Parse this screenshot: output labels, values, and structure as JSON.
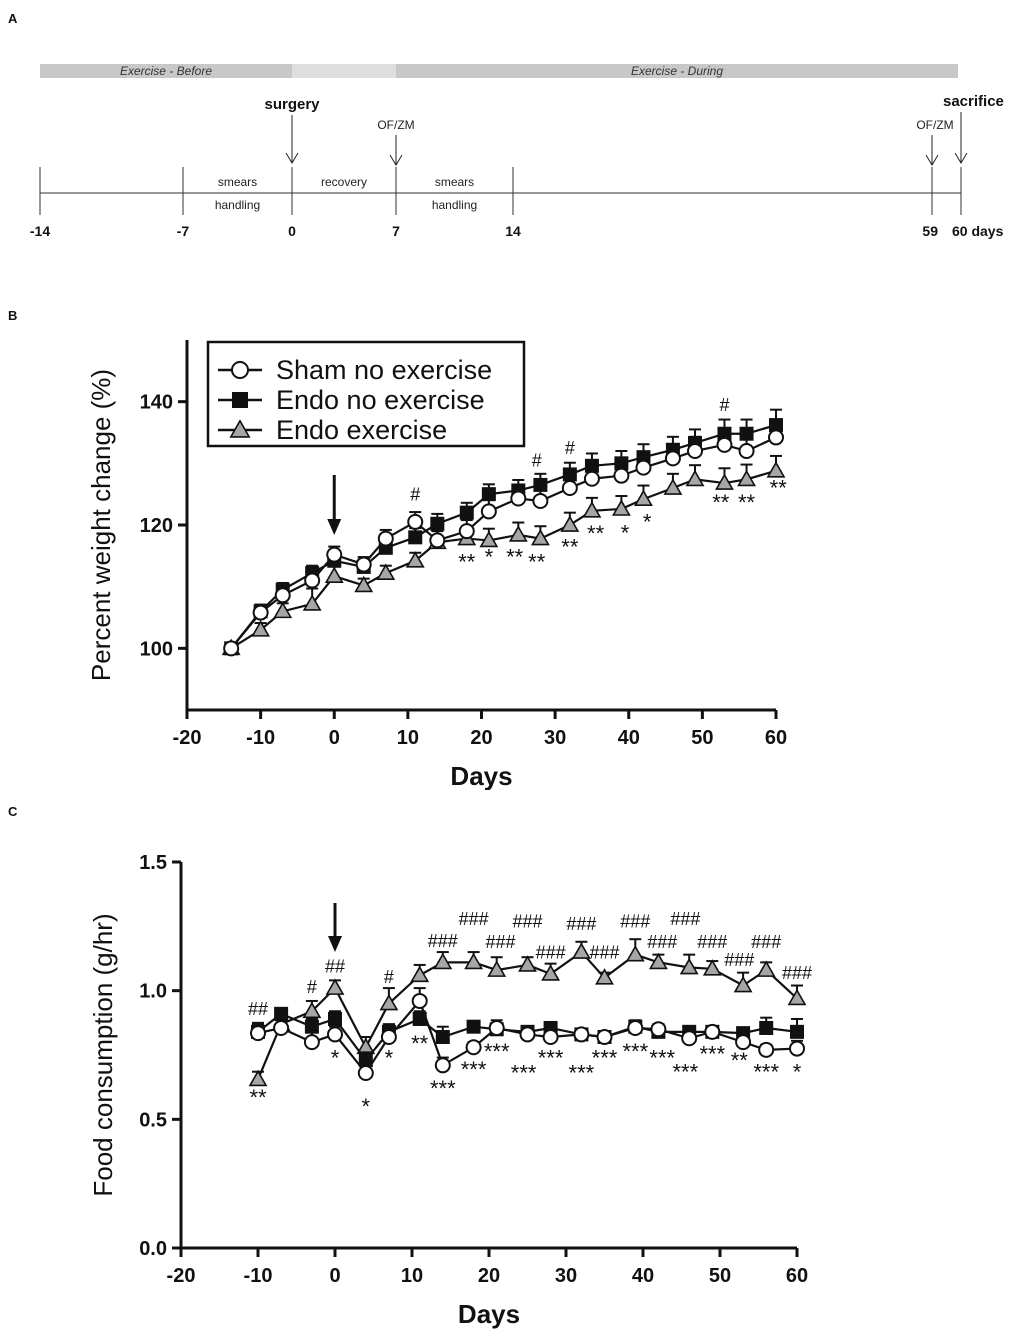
{
  "panels": {
    "a": "A",
    "b": "B",
    "c": "C"
  },
  "timeline": {
    "bands": [
      {
        "label": "Exercise - Before",
        "start": -14,
        "end": 0,
        "color": "#c8c8c8"
      },
      {
        "label": "",
        "start": 0,
        "end": 7,
        "color": "#dedede"
      },
      {
        "label": "Exercise - During",
        "start": 7,
        "end": 60,
        "color": "#c8c8c8"
      }
    ],
    "ticks": [
      {
        "day": -14,
        "label": "-14"
      },
      {
        "day": -7,
        "label": "-7"
      },
      {
        "day": 0,
        "label": "0"
      },
      {
        "day": 7,
        "label": "7"
      },
      {
        "day": 14,
        "label": "14"
      },
      {
        "day": 59,
        "label": "59"
      },
      {
        "day": 60,
        "label": "60 days"
      }
    ],
    "events": [
      {
        "day": 0,
        "label": "surgery",
        "style": "bold"
      },
      {
        "day": 7,
        "label": "OF/ZM",
        "style": "small"
      },
      {
        "day": 59,
        "label": "OF/ZM",
        "style": "small"
      },
      {
        "day": 60,
        "label": "sacrifice",
        "style": "bold"
      }
    ],
    "segments": [
      {
        "from": -7,
        "to": 0,
        "above": "smears",
        "below": "handling"
      },
      {
        "from": 0,
        "to": 7,
        "above": "recovery",
        "below": ""
      },
      {
        "from": 7,
        "to": 14,
        "above": "smears",
        "below": "handling"
      }
    ]
  },
  "legend": {
    "sham": "Sham no exercise",
    "endo": "Endo no exercise",
    "endo_ex": "Endo exercise"
  },
  "colors": {
    "line": "#111111",
    "triangle_fill": "#a6a6a6",
    "circle_fill": "#ffffff",
    "square_fill": "#111111"
  },
  "chart_data": [
    {
      "id": "weight",
      "type": "line",
      "title": "",
      "xlabel": "Days",
      "ylabel": "Percent weight change (%)",
      "xlim": [
        -20,
        60
      ],
      "ylim": [
        90,
        150
      ],
      "xticks": [
        -20,
        -10,
        0,
        10,
        20,
        30,
        40,
        50,
        60
      ],
      "yticks": [
        100,
        120,
        140
      ],
      "arrow_day": 0,
      "series": [
        {
          "name": "Sham no exercise",
          "marker": "circle",
          "x": [
            -14,
            -10,
            -7,
            -3,
            0,
            4,
            7,
            11,
            14,
            18,
            21,
            25,
            28,
            32,
            35,
            39,
            42,
            46,
            49,
            53,
            56,
            60
          ],
          "values": [
            100,
            105.8,
            108.6,
            111,
            115.2,
            113.6,
            117.8,
            120.5,
            117.5,
            119,
            122.2,
            124.3,
            123.9,
            126,
            127.5,
            128,
            129.3,
            130.8,
            132,
            133,
            132,
            134.2
          ],
          "err": [
            0.8,
            1.3,
            1.2,
            1.4,
            1.3,
            1.2,
            1.4,
            1.6,
            1.7,
            1.8,
            2.0,
            2.0,
            2.2,
            2.0,
            2.1,
            2.2,
            2.2,
            2.3,
            2.3,
            2.4,
            2.4,
            2.5
          ]
        },
        {
          "name": "Endo no exercise",
          "marker": "square",
          "x": [
            -14,
            -10,
            -7,
            -3,
            0,
            4,
            7,
            11,
            14,
            18,
            21,
            25,
            28,
            32,
            35,
            39,
            42,
            46,
            49,
            53,
            56,
            60
          ],
          "values": [
            100,
            106,
            109.5,
            112.2,
            114.2,
            113.2,
            116.3,
            118,
            120.2,
            122,
            125,
            125.6,
            126.5,
            128.2,
            129.6,
            130,
            131,
            132.2,
            133.3,
            134.8,
            134.8,
            136.2
          ],
          "err": [
            0.8,
            1.0,
            1.1,
            1.2,
            1.3,
            1.2,
            1.4,
            1.5,
            1.6,
            1.6,
            1.6,
            1.7,
            1.8,
            1.9,
            2.0,
            2.0,
            2.1,
            2.1,
            2.2,
            2.3,
            2.3,
            2.5
          ]
        },
        {
          "name": "Endo exercise",
          "marker": "triangle",
          "x": [
            -14,
            -10,
            -7,
            -3,
            0,
            4,
            7,
            11,
            14,
            18,
            21,
            25,
            28,
            32,
            35,
            39,
            42,
            46,
            49,
            53,
            56,
            60
          ],
          "values": [
            100,
            103,
            106,
            107.2,
            111.7,
            110.2,
            112.2,
            114.2,
            117.2,
            117.8,
            117.5,
            118.4,
            117.8,
            120,
            122.3,
            122.6,
            124.2,
            126,
            127.4,
            126.8,
            127.4,
            128.8
          ],
          "err": [
            0.8,
            1.1,
            1.3,
            2.5,
            1.6,
            1.1,
            1.2,
            1.3,
            1.8,
            1.8,
            1.9,
            2.0,
            2.0,
            2.0,
            2.1,
            2.1,
            2.2,
            2.3,
            2.3,
            2.4,
            2.4,
            2.4
          ]
        }
      ],
      "annotations": [
        {
          "x": 11,
          "y": 124,
          "text": "#"
        },
        {
          "x": 27.5,
          "y": 129.5,
          "text": "#"
        },
        {
          "x": 32,
          "y": 131.5,
          "text": "#"
        },
        {
          "x": 53,
          "y": 138.5,
          "text": "#"
        }
      ],
      "stars": [
        {
          "x": 18,
          "y": 112.8,
          "text": "**"
        },
        {
          "x": 21,
          "y": 113.6,
          "text": "*"
        },
        {
          "x": 24.5,
          "y": 113.6,
          "text": "**"
        },
        {
          "x": 27.5,
          "y": 112.8,
          "text": "**"
        },
        {
          "x": 32,
          "y": 115.2,
          "text": "**"
        },
        {
          "x": 35.5,
          "y": 117.4,
          "text": "**"
        },
        {
          "x": 39.5,
          "y": 117.5,
          "text": "*"
        },
        {
          "x": 42.5,
          "y": 119.3,
          "text": "*"
        },
        {
          "x": 52.5,
          "y": 122.4,
          "text": "**"
        },
        {
          "x": 56,
          "y": 122.4,
          "text": "**"
        },
        {
          "x": 60.3,
          "y": 124.8,
          "text": "**"
        }
      ]
    },
    {
      "id": "food",
      "type": "line",
      "title": "",
      "xlabel": "Days",
      "ylabel": "Food consumption (g/hr)",
      "xlim": [
        -20,
        60
      ],
      "ylim": [
        0.0,
        1.5
      ],
      "xticks": [
        -20,
        -10,
        0,
        10,
        20,
        30,
        40,
        50,
        60
      ],
      "yticks": [
        0.0,
        0.5,
        1.0,
        1.5
      ],
      "ytick_labels": [
        "0.0",
        "0.5",
        "1.0",
        "1.5"
      ],
      "arrow_day": 0,
      "series": [
        {
          "name": "Sham no exercise",
          "marker": "circle",
          "x": [
            -10,
            -7,
            -3,
            0,
            4,
            7,
            11,
            14,
            18,
            21,
            25,
            28,
            32,
            35,
            39,
            42,
            46,
            49,
            53,
            56,
            60
          ],
          "values": [
            0.835,
            0.855,
            0.8,
            0.83,
            0.68,
            0.82,
            0.96,
            0.71,
            0.78,
            0.855,
            0.83,
            0.82,
            0.83,
            0.82,
            0.855,
            0.85,
            0.815,
            0.84,
            0.8,
            0.77,
            0.775
          ],
          "err": [
            0.04,
            0.03,
            0.04,
            0.03,
            0.08,
            0.04,
            0.05,
            0.03,
            0.02,
            0.03,
            0.02,
            0.02,
            0.02,
            0.02,
            0.03,
            0.02,
            0.02,
            0.02,
            0.02,
            0.02,
            0.03
          ]
        },
        {
          "name": "Endo no exercise",
          "marker": "square",
          "x": [
            -10,
            -7,
            -3,
            0,
            4,
            7,
            11,
            14,
            18,
            21,
            25,
            28,
            32,
            35,
            39,
            42,
            46,
            49,
            53,
            56,
            60
          ],
          "values": [
            0.84,
            0.91,
            0.86,
            0.89,
            0.73,
            0.84,
            0.89,
            0.82,
            0.86,
            0.85,
            0.84,
            0.855,
            0.83,
            0.82,
            0.86,
            0.84,
            0.84,
            0.84,
            0.835,
            0.855,
            0.84
          ],
          "err": [
            0.03,
            0.02,
            0.03,
            0.03,
            0.03,
            0.03,
            0.03,
            0.04,
            0.02,
            0.02,
            0.02,
            0.02,
            0.02,
            0.02,
            0.02,
            0.02,
            0.02,
            0.02,
            0.02,
            0.04,
            0.05
          ]
        },
        {
          "name": "Endo exercise",
          "marker": "triangle",
          "x": [
            -10,
            -7,
            -3,
            0,
            4,
            7,
            11,
            14,
            18,
            21,
            25,
            28,
            32,
            35,
            39,
            42,
            46,
            49,
            53,
            56,
            60
          ],
          "values": [
            0.655,
            0.87,
            0.92,
            1.01,
            0.78,
            0.95,
            1.06,
            1.11,
            1.11,
            1.08,
            1.1,
            1.065,
            1.15,
            1.05,
            1.14,
            1.11,
            1.09,
            1.085,
            1.02,
            1.08,
            0.97
          ],
          "err": [
            0.03,
            0.03,
            0.04,
            0.03,
            0.04,
            0.06,
            0.04,
            0.04,
            0.04,
            0.05,
            0.03,
            0.04,
            0.04,
            0.02,
            0.06,
            0.03,
            0.05,
            0.03,
            0.05,
            0.03,
            0.05
          ]
        }
      ],
      "annotations": [
        {
          "x": -10,
          "y": 0.905,
          "text": "##"
        },
        {
          "x": -3,
          "y": 0.99,
          "text": "#"
        },
        {
          "x": 0,
          "y": 1.07,
          "text": "##"
        },
        {
          "x": 7,
          "y": 1.03,
          "text": "#"
        },
        {
          "x": 14,
          "y": 1.17,
          "text": "###"
        },
        {
          "x": 18,
          "y": 1.255,
          "text": "###"
        },
        {
          "x": 21.5,
          "y": 1.165,
          "text": "###"
        },
        {
          "x": 25,
          "y": 1.245,
          "text": "###"
        },
        {
          "x": 28,
          "y": 1.125,
          "text": "###"
        },
        {
          "x": 32,
          "y": 1.235,
          "text": "###"
        },
        {
          "x": 35,
          "y": 1.125,
          "text": "###"
        },
        {
          "x": 39,
          "y": 1.245,
          "text": "###"
        },
        {
          "x": 42.5,
          "y": 1.165,
          "text": "###"
        },
        {
          "x": 45.5,
          "y": 1.255,
          "text": "###"
        },
        {
          "x": 49,
          "y": 1.165,
          "text": "###"
        },
        {
          "x": 52.5,
          "y": 1.095,
          "text": "###"
        },
        {
          "x": 56,
          "y": 1.165,
          "text": "###"
        },
        {
          "x": 60,
          "y": 1.045,
          "text": "###"
        }
      ],
      "stars": [
        {
          "x": -10,
          "y": 0.555,
          "text": "**"
        },
        {
          "x": 0,
          "y": 0.71,
          "text": "*"
        },
        {
          "x": 4,
          "y": 0.52,
          "text": "*"
        },
        {
          "x": 7,
          "y": 0.71,
          "text": "*"
        },
        {
          "x": 11,
          "y": 0.765,
          "text": "**"
        },
        {
          "x": 14,
          "y": 0.59,
          "text": "***"
        },
        {
          "x": 18,
          "y": 0.665,
          "text": "***"
        },
        {
          "x": 21,
          "y": 0.735,
          "text": "***"
        },
        {
          "x": 24.5,
          "y": 0.65,
          "text": "***"
        },
        {
          "x": 28,
          "y": 0.71,
          "text": "***"
        },
        {
          "x": 32,
          "y": 0.65,
          "text": "***"
        },
        {
          "x": 35,
          "y": 0.71,
          "text": "***"
        },
        {
          "x": 39,
          "y": 0.735,
          "text": "***"
        },
        {
          "x": 42.5,
          "y": 0.71,
          "text": "***"
        },
        {
          "x": 45.5,
          "y": 0.655,
          "text": "***"
        },
        {
          "x": 49,
          "y": 0.725,
          "text": "***"
        },
        {
          "x": 52.5,
          "y": 0.7,
          "text": "**"
        },
        {
          "x": 56,
          "y": 0.655,
          "text": "***"
        },
        {
          "x": 60,
          "y": 0.655,
          "text": "*"
        }
      ]
    }
  ]
}
